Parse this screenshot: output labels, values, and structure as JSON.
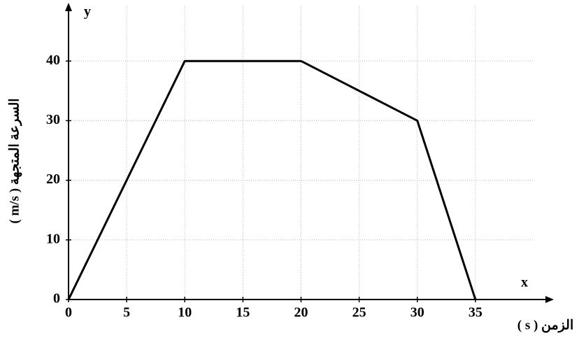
{
  "chart_data": {
    "type": "line",
    "x": [
      0,
      10,
      20,
      30,
      35
    ],
    "values": [
      0,
      40,
      40,
      30,
      0
    ],
    "color": "#000000",
    "xlim": [
      0,
      40
    ],
    "ylim": [
      0,
      50
    ],
    "xticks": [
      0,
      5,
      10,
      15,
      20,
      25,
      30,
      35
    ],
    "yticks": [
      0,
      10,
      20,
      30,
      40
    ],
    "grid": true,
    "x_axis_letter": "x",
    "y_axis_letter": "y",
    "xlabel": "الزمن ( s )",
    "ylabel": "السرعة المتجهة ( m/s )"
  }
}
